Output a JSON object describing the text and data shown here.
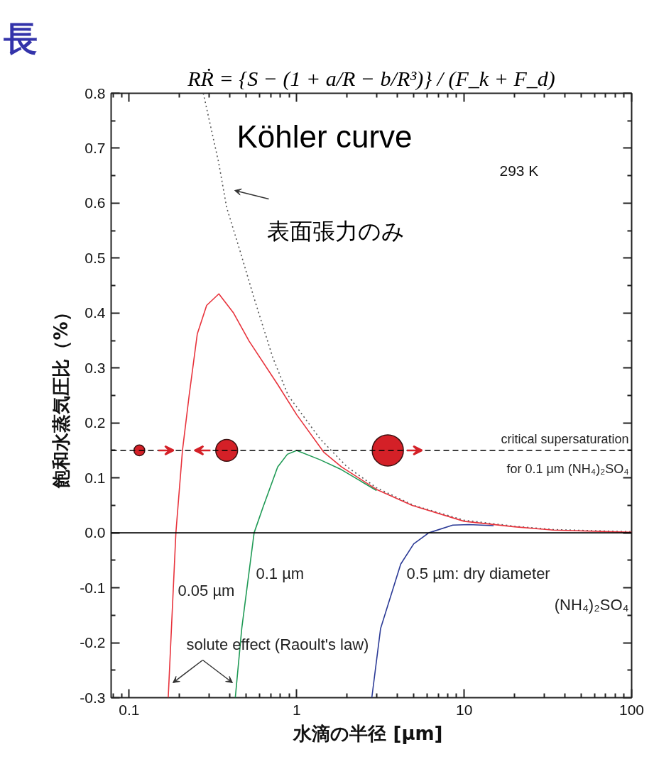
{
  "chart_data": {
    "type": "line",
    "title": "RṘ = {S − (1 + a/R − b/R³)} / (F_k + F_d)",
    "xlabel": "水滴の半径  [µm]",
    "ylabel": "飽和水蒸気圧比（%）",
    "log": "x",
    "grid": false,
    "marker": "none",
    "xlim": [
      0.078,
      100
    ],
    "ylim": [
      -0.3,
      0.8
    ],
    "xticks": [
      {
        "value": 0.08,
        "label": null
      },
      {
        "value": 0.09,
        "label": null
      },
      0.1,
      {
        "value": 0.2,
        "label": null
      },
      {
        "value": 0.3,
        "label": null
      },
      {
        "value": 0.4,
        "label": null
      },
      {
        "value": 0.5,
        "label": null
      },
      {
        "value": 0.6,
        "label": null
      },
      {
        "value": 0.7,
        "label": null
      },
      {
        "value": 0.8,
        "label": null
      },
      {
        "value": 0.9,
        "label": null
      },
      1,
      {
        "value": 2,
        "label": null
      },
      {
        "value": 3,
        "label": null
      },
      {
        "value": 4,
        "label": null
      },
      {
        "value": 5,
        "label": null
      },
      {
        "value": 6,
        "label": null
      },
      {
        "value": 7,
        "label": null
      },
      {
        "value": 8,
        "label": null
      },
      {
        "value": 9,
        "label": null
      },
      10,
      {
        "value": 20,
        "label": null
      },
      {
        "value": 30,
        "label": null
      },
      {
        "value": 40,
        "label": null
      },
      {
        "value": 50,
        "label": null
      },
      {
        "value": 60,
        "label": null
      },
      {
        "value": 70,
        "label": null
      },
      {
        "value": 80,
        "label": null
      },
      {
        "value": 90,
        "label": null
      },
      100
    ],
    "yticks": [
      -0.3,
      {
        "value": -0.25,
        "label": null
      },
      -0.2,
      {
        "value": -0.15,
        "label": null
      },
      -0.1,
      {
        "value": -0.05,
        "label": null
      },
      {
        "value": 0,
        "label": "0.0"
      },
      {
        "value": 0.05,
        "label": null
      },
      0.1,
      {
        "value": 0.15,
        "label": null
      },
      0.2,
      {
        "value": 0.25,
        "label": null
      },
      0.3,
      {
        "value": 0.35,
        "label": null
      },
      0.4,
      {
        "value": 0.45,
        "label": null
      },
      0.5,
      {
        "value": 0.55,
        "label": null
      },
      0.6,
      {
        "value": 0.65,
        "label": null
      },
      0.7,
      {
        "value": 0.75,
        "label": null
      },
      0.8
    ],
    "series": [
      {
        "name": "0.05 µm",
        "color": "#e8333c",
        "x": [
          0.171,
          0.19,
          0.208,
          0.228,
          0.255,
          0.29,
          0.343,
          0.42,
          0.52,
          0.77,
          1.0,
          1.45,
          1.85,
          3.0,
          4.9,
          10,
          20,
          34,
          100
        ],
        "values": [
          -0.3,
          0,
          0.15,
          0.25,
          0.362,
          0.414,
          0.435,
          0.4,
          0.349,
          0.27,
          0.215,
          0.147,
          0.12,
          0.079,
          0.05,
          0.021,
          0.011,
          0.005,
          0.001
        ]
      },
      {
        "name": "0.1 µm",
        "color": "#1f9a55",
        "x": [
          0.43,
          0.47,
          0.557,
          0.63,
          0.77,
          0.88,
          1.0,
          1.38,
          1.85,
          3.0
        ],
        "values": [
          -0.3,
          -0.174,
          0,
          0.047,
          0.12,
          0.143,
          0.15,
          0.133,
          0.115,
          0.077
        ]
      },
      {
        "name": "0.5 µm: dry diameter\n(NH₄)₂SO₄",
        "color": "#2b3a96",
        "x": [
          2.81,
          3.17,
          4.18,
          5.0,
          6.15,
          8.55,
          10.7,
          15
        ],
        "values": [
          -0.3,
          -0.174,
          -0.057,
          -0.02,
          0,
          0.014,
          0.015,
          0.013
        ]
      },
      {
        "color": "#555555",
        "line_style": "dotted",
        "x": [
          0.277,
          0.342,
          0.382,
          0.458,
          0.557,
          0.72,
          0.89,
          1.38,
          2.0,
          3.0,
          5,
          10,
          20,
          34,
          100
        ],
        "values": [
          0.8,
          0.674,
          0.592,
          0.514,
          0.427,
          0.319,
          0.25,
          0.171,
          0.12,
          0.082,
          0.05,
          0.023,
          0.012,
          0.006,
          0.002
        ]
      },
      {
        "type": "bubble",
        "marker": "circle",
        "color": "#d42027",
        "x": [
          0.115,
          0.382,
          3.5
        ],
        "values": [
          0.15,
          0.15,
          0.15
        ],
        "sizes": [
          0.12,
          0.49,
          1
        ]
      }
    ],
    "ref_lines": [
      {
        "axis": "y",
        "value": 0.15,
        "label": "critical supersaturation\nfor 0.1 µm (NH₄)₂SO₄",
        "color": "#000000",
        "line_style": "dashed"
      },
      {
        "axis": "y",
        "value": 0,
        "color": "#000000",
        "line_style": "solid"
      }
    ],
    "annotations": [
      "Köhler curve",
      "293 K",
      "表面張力のみ",
      "solute effect (Raoult's law)",
      "長"
    ]
  }
}
